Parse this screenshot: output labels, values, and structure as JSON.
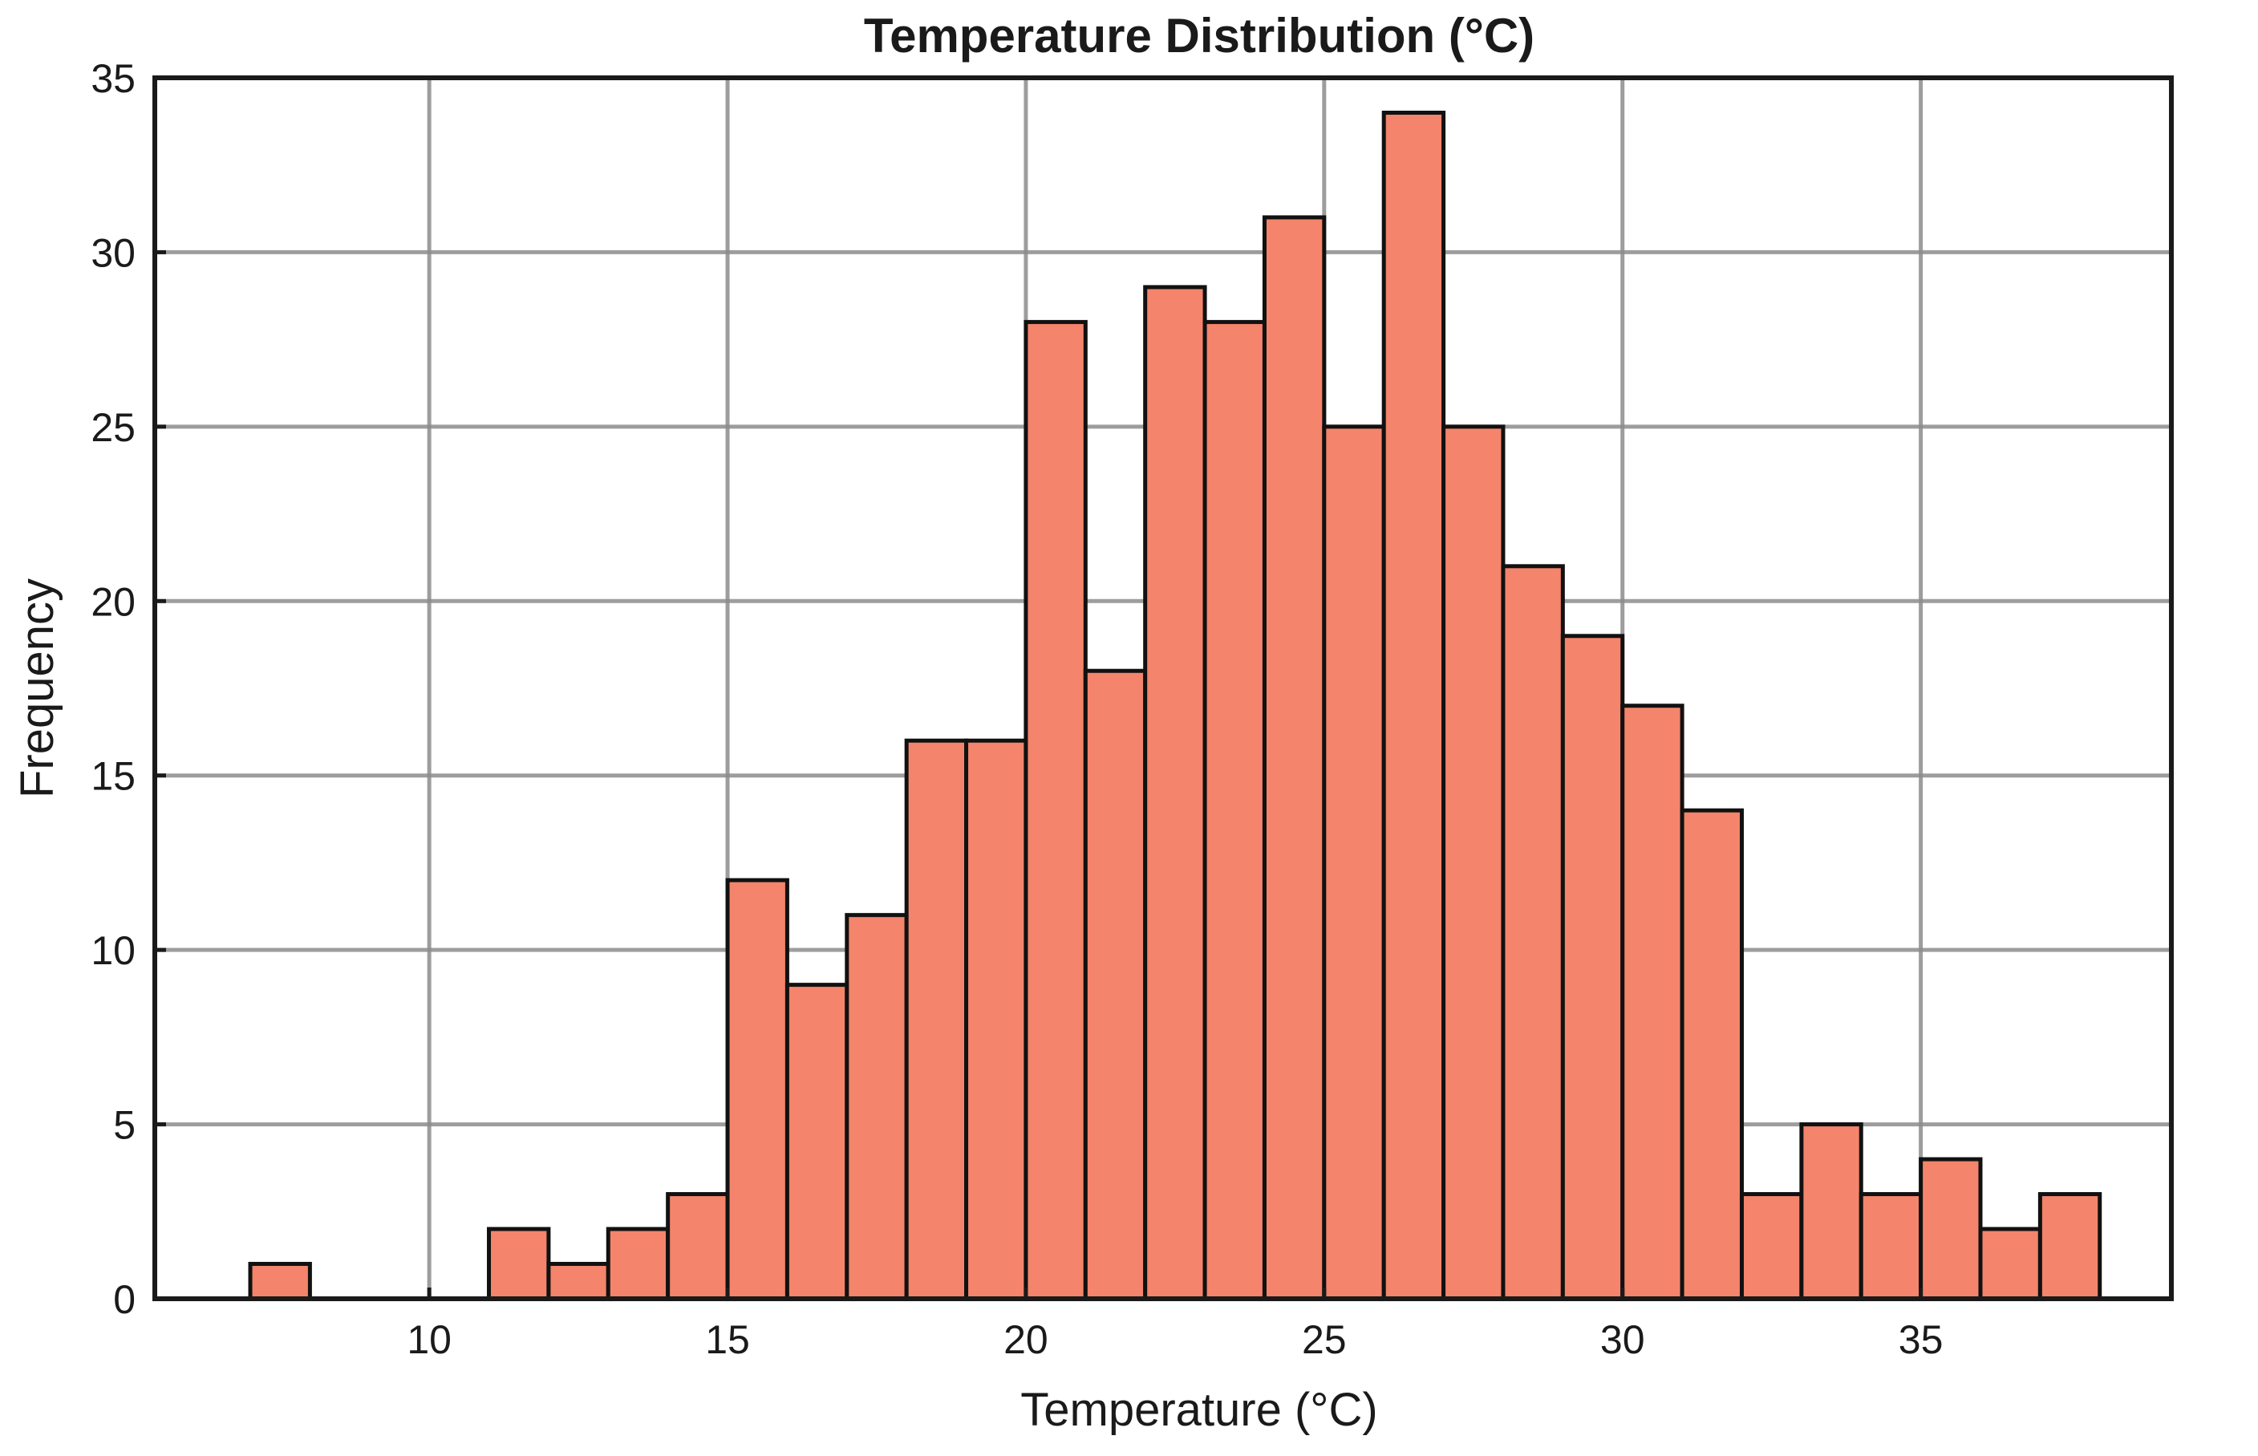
{
  "chart_data": {
    "type": "bar",
    "title": "Temperature Distribution (°C)",
    "xlabel": "Temperature (°C)",
    "ylabel": "Frequency",
    "xlim": [
      5.4,
      39.2
    ],
    "ylim": [
      0,
      35
    ],
    "xticks": [
      10,
      15,
      20,
      25,
      30,
      35
    ],
    "yticks": [
      0,
      5,
      10,
      15,
      20,
      25,
      30,
      35
    ],
    "grid": true,
    "bar_color": "#f4846b",
    "edge_color": "#111111",
    "bins": [
      {
        "x0": 7,
        "x1": 8,
        "count": 1
      },
      {
        "x0": 8,
        "x1": 9,
        "count": 0
      },
      {
        "x0": 9,
        "x1": 10,
        "count": 0
      },
      {
        "x0": 10,
        "x1": 11,
        "count": 0
      },
      {
        "x0": 11,
        "x1": 12,
        "count": 2
      },
      {
        "x0": 12,
        "x1": 13,
        "count": 1
      },
      {
        "x0": 13,
        "x1": 14,
        "count": 2
      },
      {
        "x0": 14,
        "x1": 15,
        "count": 3
      },
      {
        "x0": 15,
        "x1": 16,
        "count": 12
      },
      {
        "x0": 16,
        "x1": 17,
        "count": 9
      },
      {
        "x0": 17,
        "x1": 18,
        "count": 11
      },
      {
        "x0": 18,
        "x1": 19,
        "count": 16
      },
      {
        "x0": 19,
        "x1": 20,
        "count": 16
      },
      {
        "x0": 20,
        "x1": 21,
        "count": 28
      },
      {
        "x0": 21,
        "x1": 22,
        "count": 18
      },
      {
        "x0": 22,
        "x1": 23,
        "count": 29
      },
      {
        "x0": 23,
        "x1": 24,
        "count": 28
      },
      {
        "x0": 24,
        "x1": 25,
        "count": 31
      },
      {
        "x0": 25,
        "x1": 26,
        "count": 25
      },
      {
        "x0": 26,
        "x1": 27,
        "count": 34
      },
      {
        "x0": 27,
        "x1": 28,
        "count": 25
      },
      {
        "x0": 28,
        "x1": 29,
        "count": 21
      },
      {
        "x0": 29,
        "x1": 30,
        "count": 19
      },
      {
        "x0": 30,
        "x1": 31,
        "count": 17
      },
      {
        "x0": 31,
        "x1": 32,
        "count": 14
      },
      {
        "x0": 32,
        "x1": 33,
        "count": 3
      },
      {
        "x0": 33,
        "x1": 34,
        "count": 5
      },
      {
        "x0": 34,
        "x1": 35,
        "count": 3
      },
      {
        "x0": 35,
        "x1": 36,
        "count": 4
      },
      {
        "x0": 36,
        "x1": 37,
        "count": 2
      },
      {
        "x0": 37,
        "x1": 38,
        "count": 3
      }
    ]
  }
}
